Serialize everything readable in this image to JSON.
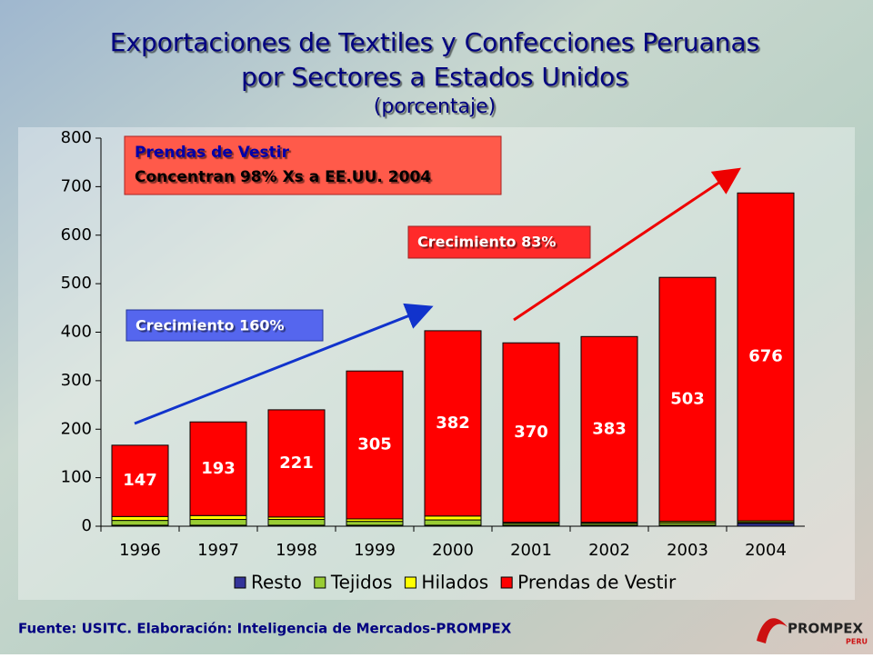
{
  "chart_data": {
    "type": "stacked_bar",
    "title": [
      "Exportaciones de Textiles y Confecciones Peruanas",
      "por Sectores a Estados Unidos"
    ],
    "subtitle": "(porcentaje)",
    "categories": [
      "1996",
      "1997",
      "1998",
      "1999",
      "2000",
      "2001",
      "2002",
      "2003",
      "2004"
    ],
    "series": [
      {
        "name": "Resto",
        "color": "#333399",
        "values": [
          2,
          2,
          2,
          2,
          2,
          2,
          2,
          2,
          6
        ]
      },
      {
        "name": "Tejidos",
        "color": "#99cc33",
        "values": [
          10,
          12,
          12,
          8,
          11,
          4,
          4,
          5,
          2
        ]
      },
      {
        "name": "Hilados",
        "color": "#ffff00",
        "values": [
          8,
          8,
          5,
          5,
          8,
          2,
          2,
          3,
          3
        ]
      },
      {
        "name": "Prendas de Vestir",
        "color": "#ff0000",
        "values": [
          147,
          193,
          221,
          305,
          382,
          370,
          383,
          503,
          676
        ],
        "show_values": true
      }
    ],
    "ylim": [
      0,
      800
    ],
    "yticks": [
      0,
      100,
      200,
      300,
      400,
      500,
      600,
      700,
      800
    ],
    "annotations": [
      {
        "text": [
          "Prendas de Vestir",
          "Concentran 98% Xs a EE.UU. 2004"
        ]
      },
      {
        "text": "Crecimiento 83%"
      },
      {
        "text": "Crecimiento 160%"
      }
    ],
    "source": "Fuente: USITC.  Elaboración: Inteligencia de Mercados-PROMPEX",
    "logo": [
      "PROMPEX",
      "PERU"
    ]
  }
}
